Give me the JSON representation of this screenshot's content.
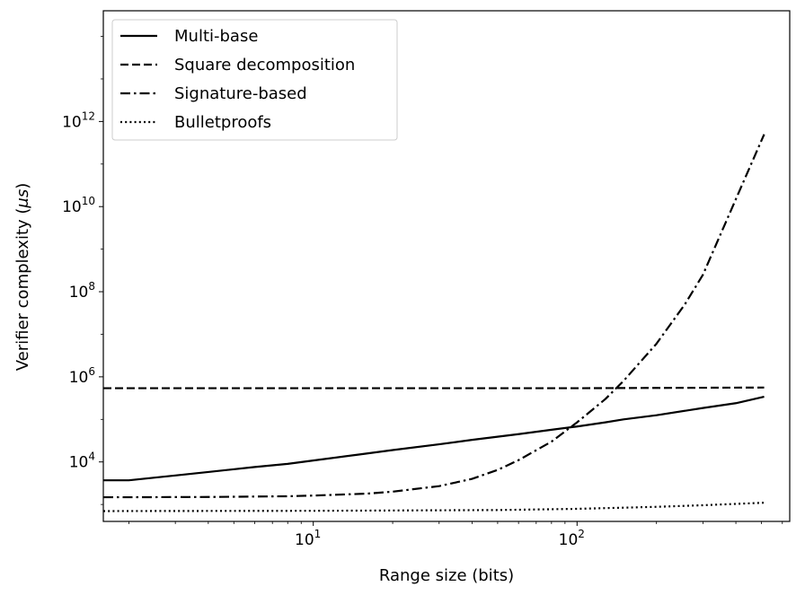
{
  "chart_data": {
    "type": "line",
    "xlabel": "Range size (bits)",
    "ylabel_main": "Verifier complexity (",
    "ylabel_unit": "μs",
    "ylabel_close": ")",
    "x_scale": "log",
    "y_scale": "log",
    "xlim": [
      1.6,
      640
    ],
    "ylim": [
      400,
      400000000000000
    ],
    "x_ticks": [
      {
        "base": "10",
        "exp": "1",
        "value": 10
      },
      {
        "base": "10",
        "exp": "2",
        "value": 100
      }
    ],
    "y_ticks": [
      {
        "base": "10",
        "exp": "4",
        "value": 10000
      },
      {
        "base": "10",
        "exp": "6",
        "value": 1000000
      },
      {
        "base": "10",
        "exp": "8",
        "value": 100000000
      },
      {
        "base": "10",
        "exp": "10",
        "value": 10000000000
      },
      {
        "base": "10",
        "exp": "12",
        "value": 1000000000000
      }
    ],
    "legend_position": "top-left",
    "grid": false,
    "series": [
      {
        "name": "Multi-base",
        "style": "solid",
        "x": [
          1.6,
          2,
          3,
          4,
          6,
          8,
          10,
          15,
          20,
          30,
          40,
          60,
          80,
          100,
          128,
          150,
          200,
          300,
          400,
          512
        ],
        "y": [
          3700,
          3700,
          4800,
          5800,
          7600,
          9000,
          10800,
          15000,
          19000,
          26000,
          33000,
          45000,
          57000,
          68000,
          85000,
          100000,
          125000,
          185000,
          240000,
          340000
        ]
      },
      {
        "name": "Square decomposition",
        "style": "dashed",
        "x": [
          1.6,
          10,
          100,
          512
        ],
        "y": [
          540000,
          540000,
          540000,
          560000
        ]
      },
      {
        "name": "Signature-based",
        "style": "dashdot",
        "x": [
          1.6,
          2,
          4,
          8,
          10,
          16,
          20,
          30,
          40,
          50,
          60,
          80,
          100,
          128,
          150,
          200,
          256,
          300,
          400,
          512
        ],
        "y": [
          1480,
          1480,
          1500,
          1560,
          1620,
          1800,
          2000,
          2700,
          4000,
          6500,
          11000,
          30000,
          85000,
          300000,
          800000,
          6000000,
          50000000,
          250000000,
          15000000000,
          500000000000
        ]
      },
      {
        "name": "Bulletproofs",
        "style": "dotted",
        "x": [
          1.6,
          10,
          50,
          100,
          200,
          300,
          512
        ],
        "y": [
          700,
          710,
          740,
          790,
          880,
          960,
          1100
        ]
      }
    ]
  }
}
